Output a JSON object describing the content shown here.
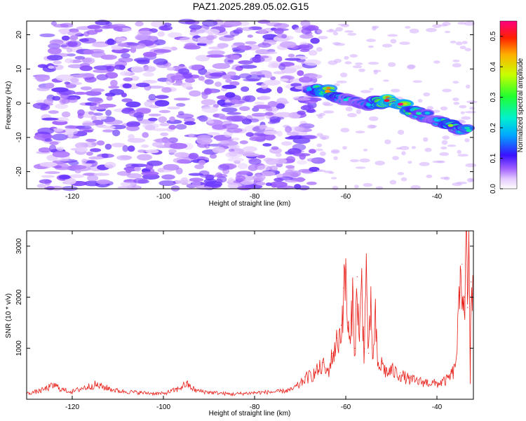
{
  "title": "PAZ1.2025.289.05.02.G15",
  "colors": {
    "snr_line": "#e8201a",
    "background": "#ffffff",
    "axis": "#000000"
  },
  "chart_data": [
    {
      "type": "heatmap",
      "title": "",
      "xlabel": "Height of straight line (km)",
      "ylabel": "Frequency (Hz)",
      "xlim": [
        -130,
        -32
      ],
      "ylim": [
        -25,
        24
      ],
      "xticks": [
        "-120",
        "-100",
        "-80",
        "-60",
        "-40"
      ],
      "xtick_values": [
        -120,
        -100,
        -80,
        -60,
        -40
      ],
      "yticks": [
        "20",
        "10",
        "0",
        "-10",
        "-20"
      ],
      "ytick_values": [
        20,
        10,
        0,
        -10,
        -20
      ],
      "colorbar": {
        "label": "Normalized spectral amplitude",
        "range": [
          0,
          0.55
        ],
        "ticks": [
          "0.0",
          "0.1",
          "0.2",
          "0.3",
          "0.4",
          "0.5"
        ],
        "tick_values": [
          0,
          0.1,
          0.2,
          0.3,
          0.4,
          0.5
        ]
      },
      "noise_region": {
        "x": [
          -127,
          -66
        ],
        "y": [
          -25,
          24
        ],
        "typical_amplitude": 0.06
      },
      "signal_ridge": [
        {
          "x": -68,
          "y": 4.0,
          "amplitude": 0.18
        },
        {
          "x": -64,
          "y": 3.5,
          "amplitude": 0.45
        },
        {
          "x": -60,
          "y": 1.0,
          "amplitude": 0.22
        },
        {
          "x": -55,
          "y": -0.5,
          "amplitude": 0.2
        },
        {
          "x": -51,
          "y": 0.8,
          "amplitude": 0.52
        },
        {
          "x": -48,
          "y": -0.3,
          "amplitude": 0.55
        },
        {
          "x": -44,
          "y": -3.0,
          "amplitude": 0.25
        },
        {
          "x": -40,
          "y": -5.0,
          "amplitude": 0.2
        },
        {
          "x": -37,
          "y": -6.5,
          "amplitude": 0.35
        },
        {
          "x": -33,
          "y": -8.0,
          "amplitude": 0.25
        }
      ]
    },
    {
      "type": "line",
      "title": "",
      "xlabel": "Height of straight line (km)",
      "ylabel": "SNR (10 * v/v)",
      "xlim": [
        -130,
        -32
      ],
      "ylim": [
        0,
        3300
      ],
      "xticks": [
        "-120",
        "-100",
        "-80",
        "-60",
        "-40"
      ],
      "xtick_values": [
        -120,
        -100,
        -80,
        -60,
        -40
      ],
      "yticks": [
        "3000",
        "2000",
        "1000"
      ],
      "ytick_values": [
        3000,
        2000,
        1000
      ],
      "series": [
        {
          "x": [
            -130,
            -127,
            -124,
            -122,
            -120,
            -118,
            -115,
            -112,
            -110,
            -105,
            -100,
            -97,
            -95,
            -93,
            -90,
            -85,
            -80,
            -75,
            -72,
            -70,
            -69,
            -67,
            -65,
            -64,
            -63,
            -62,
            -61,
            -60.5,
            -60,
            -59.5,
            -59,
            -58.5,
            -58,
            -57.5,
            -57,
            -56.5,
            -56,
            -55.5,
            -55,
            -54.5,
            -54,
            -53.5,
            -53,
            -52,
            -51,
            -50,
            -48,
            -46,
            -44,
            -42,
            -40,
            -38,
            -37,
            -36,
            -35,
            -34.5,
            -34,
            -33.5,
            -33.3,
            -33,
            -32.7,
            -32.5,
            -32
          ],
          "y": [
            120,
            180,
            300,
            200,
            160,
            230,
            310,
            230,
            180,
            140,
            120,
            210,
            330,
            190,
            150,
            110,
            140,
            160,
            200,
            320,
            440,
            540,
            720,
            560,
            900,
            1200,
            1450,
            2180,
            2650,
            1500,
            1100,
            2200,
            1000,
            2400,
            1200,
            2500,
            1000,
            2700,
            900,
            1900,
            800,
            1700,
            700,
            750,
            560,
            620,
            520,
            420,
            380,
            360,
            330,
            400,
            500,
            650,
            2100,
            2650,
            2000,
            3300,
            1800,
            3050,
            400,
            2300,
            2400
          ]
        }
      ]
    }
  ]
}
